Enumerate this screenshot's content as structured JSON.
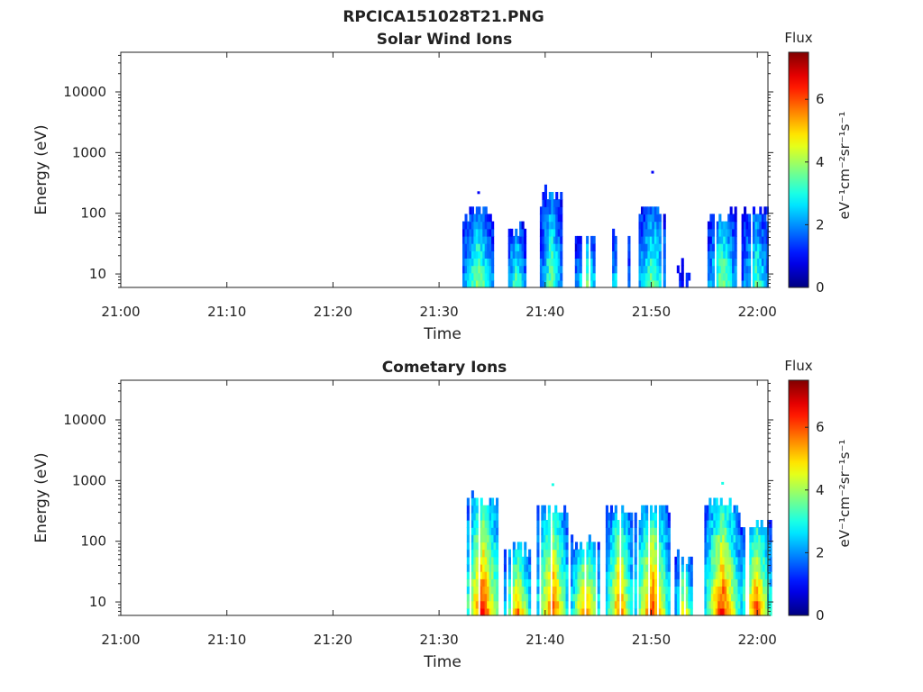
{
  "figure": {
    "title": "RPCICA151028T21.PNG"
  },
  "chart_data": [
    {
      "type": "heatmap",
      "title": "Solar Wind Ions",
      "xlabel": "Time",
      "ylabel": "Energy (eV)",
      "x_ticks": [
        "21:00",
        "21:10",
        "21:20",
        "21:30",
        "21:40",
        "21:50",
        "22:00"
      ],
      "y_ticks": [
        "10",
        "100",
        "1000",
        "10000"
      ],
      "y_scale": "log",
      "ylim": [
        6,
        45000
      ],
      "xlim_minutes": [
        0,
        61
      ],
      "colorbar": {
        "title": "Flux",
        "unit_label": "eV⁻¹cm⁻²sr⁻¹s⁻¹",
        "ticks": [
          "0",
          "2",
          "4",
          "6"
        ],
        "range": [
          0,
          7.5
        ]
      },
      "bursts": [
        {
          "t": 33.6,
          "w": 1.4,
          "emax": 110,
          "peak": 4.2,
          "spike": 230
        },
        {
          "t": 37.2,
          "w": 0.9,
          "emax": 60,
          "peak": 3.8
        },
        {
          "t": 40.5,
          "w": 1.0,
          "emax": 210,
          "peak": 4.0
        },
        {
          "t": 43.8,
          "w": 1.0,
          "emax": 45,
          "peak": 4.0
        },
        {
          "t": 47.0,
          "w": 0.9,
          "emax": 50,
          "peak": 3.8
        },
        {
          "t": 50.0,
          "w": 1.4,
          "emax": 120,
          "peak": 3.9,
          "spike": 500
        },
        {
          "t": 53.0,
          "w": 0.6,
          "emax": 18,
          "peak": 1.5
        },
        {
          "t": 56.6,
          "w": 1.3,
          "emax": 100,
          "peak": 4.2
        },
        {
          "t": 59.8,
          "w": 1.3,
          "emax": 120,
          "peak": 3.6
        }
      ]
    },
    {
      "type": "heatmap",
      "title": "Cometary Ions",
      "xlabel": "Time",
      "ylabel": "Energy (eV)",
      "x_ticks": [
        "21:00",
        "21:10",
        "21:20",
        "21:30",
        "21:40",
        "21:50",
        "22:00"
      ],
      "y_ticks": [
        "10",
        "100",
        "1000",
        "10000"
      ],
      "y_scale": "log",
      "ylim": [
        6,
        45000
      ],
      "xlim_minutes": [
        0,
        61
      ],
      "colorbar": {
        "title": "Flux",
        "unit_label": "eV⁻¹cm⁻²sr⁻¹s⁻¹",
        "ticks": [
          "0",
          "2",
          "4",
          "6"
        ],
        "range": [
          0,
          7.5
        ]
      },
      "bursts": [
        {
          "t": 34.0,
          "w": 1.6,
          "emax": 500,
          "peak": 6.6
        },
        {
          "t": 37.3,
          "w": 1.2,
          "emax": 80,
          "peak": 6.0
        },
        {
          "t": 40.6,
          "w": 1.4,
          "emax": 350,
          "peak": 6.4,
          "spike": 900
        },
        {
          "t": 43.7,
          "w": 1.3,
          "emax": 100,
          "peak": 6.2
        },
        {
          "t": 46.9,
          "w": 1.2,
          "emax": 300,
          "peak": 6.2
        },
        {
          "t": 50.0,
          "w": 1.6,
          "emax": 350,
          "peak": 6.4
        },
        {
          "t": 53.0,
          "w": 0.8,
          "emax": 60,
          "peak": 5.4
        },
        {
          "t": 56.6,
          "w": 1.6,
          "emax": 450,
          "peak": 6.6,
          "spike": 950
        },
        {
          "t": 59.8,
          "w": 1.4,
          "emax": 200,
          "peak": 6.3
        }
      ]
    }
  ]
}
